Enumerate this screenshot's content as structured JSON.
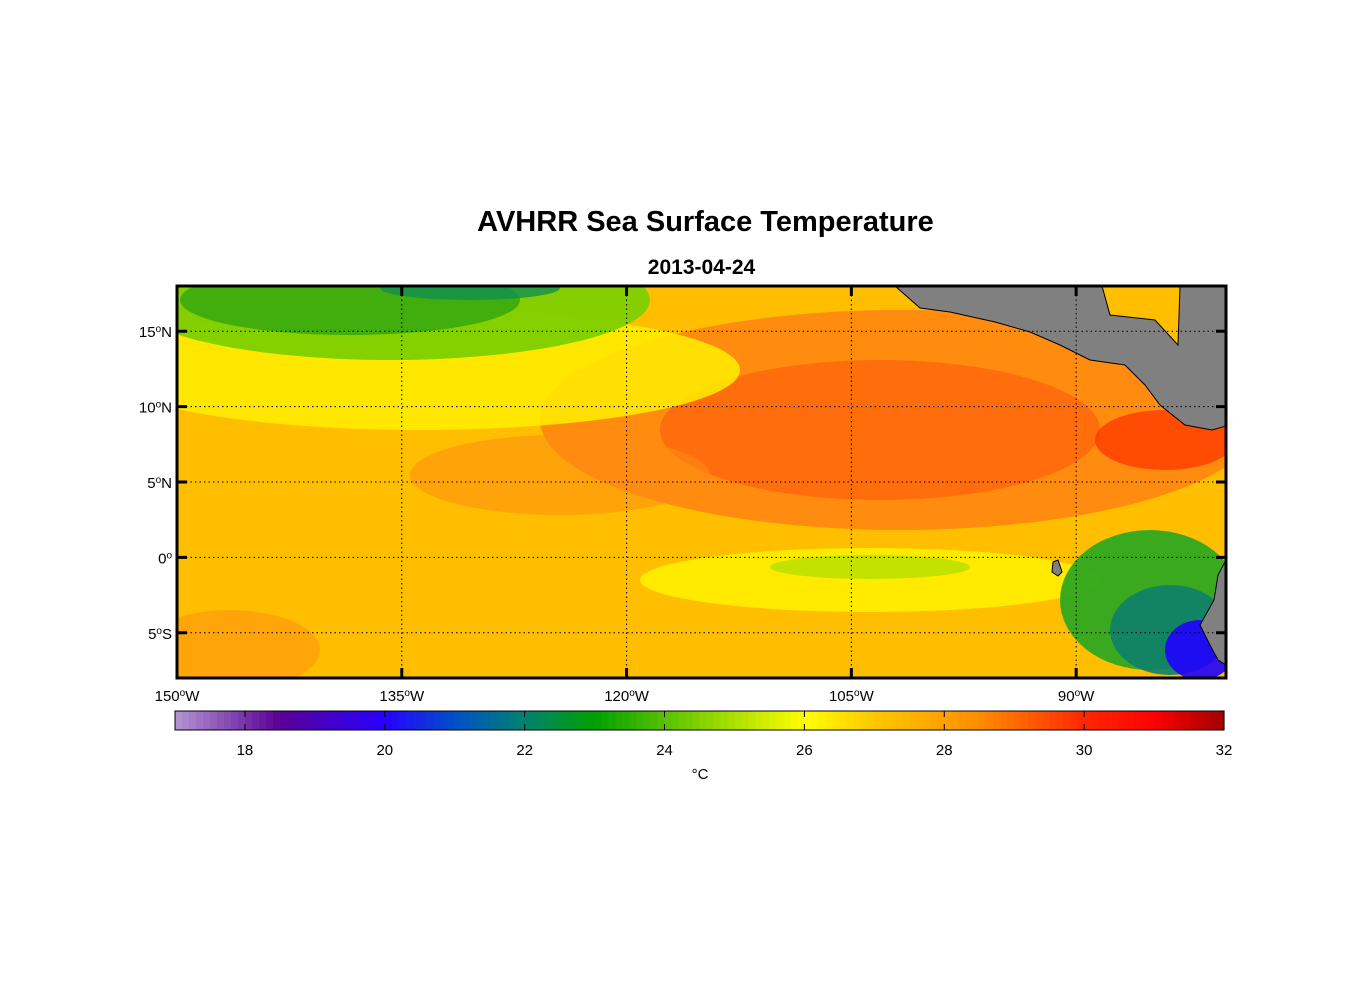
{
  "title": "AVHRR Sea Surface Temperature",
  "date": "2013-04-24",
  "map": {
    "lon_range": [
      -150,
      -80
    ],
    "lat_range": [
      -8,
      18
    ],
    "lon_ticks": [
      {
        "value": -150,
        "deg": "150",
        "hem": "W"
      },
      {
        "value": -135,
        "deg": "135",
        "hem": "W"
      },
      {
        "value": -120,
        "deg": "120",
        "hem": "W"
      },
      {
        "value": -105,
        "deg": "105",
        "hem": "W"
      },
      {
        "value": -90,
        "deg": "90",
        "hem": "W"
      }
    ],
    "lat_ticks": [
      {
        "value": 15,
        "deg": "15",
        "hem": "N"
      },
      {
        "value": 10,
        "deg": "10",
        "hem": "N"
      },
      {
        "value": 5,
        "deg": "5",
        "hem": "N"
      },
      {
        "value": 0,
        "deg": "0",
        "hem": ""
      },
      {
        "value": -5,
        "deg": "5",
        "hem": "S"
      }
    ],
    "land_color": "#808080"
  },
  "colorbar": {
    "min": 17,
    "max": 32,
    "ticks": [
      "18",
      "20",
      "22",
      "24",
      "26",
      "28",
      "30",
      "32"
    ],
    "unit": "°C",
    "stops": [
      {
        "t": 17,
        "c": "#b496d2"
      },
      {
        "t": 18.5,
        "c": "#5a0096"
      },
      {
        "t": 20,
        "c": "#2800ff"
      },
      {
        "t": 21,
        "c": "#0050c8"
      },
      {
        "t": 22,
        "c": "#00826e"
      },
      {
        "t": 23,
        "c": "#00a000"
      },
      {
        "t": 24.5,
        "c": "#82d200"
      },
      {
        "t": 26,
        "c": "#ffff00"
      },
      {
        "t": 27,
        "c": "#ffc800"
      },
      {
        "t": 28.5,
        "c": "#ff8c00"
      },
      {
        "t": 30,
        "c": "#ff2800"
      },
      {
        "t": 31,
        "c": "#ff0000"
      },
      {
        "t": 32,
        "c": "#a00000"
      }
    ]
  }
}
